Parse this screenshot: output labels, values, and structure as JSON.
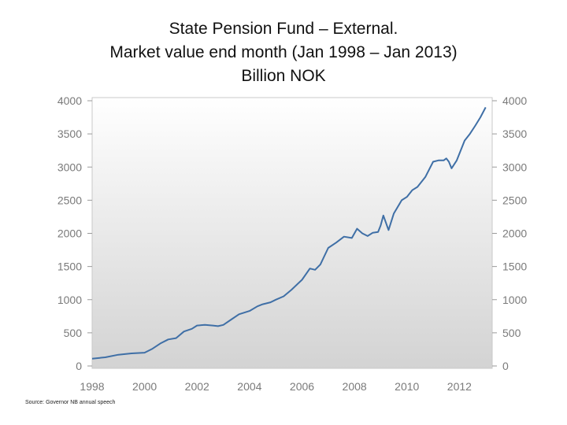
{
  "title": {
    "line1": "State Pension Fund – External.",
    "line2": "Market value end month (Jan 1998 – Jan 2013)",
    "line3": "Billion NOK"
  },
  "source": "Source: Governor NB annual speech",
  "chart_data": {
    "type": "line",
    "title": "State Pension Fund – External. Market value end month (Jan 1998 – Jan 2013) Billion NOK",
    "xlabel": "",
    "ylabel": "",
    "xlim": [
      1998,
      2013.25
    ],
    "ylim": [
      0,
      4000
    ],
    "x_ticks": [
      "1998",
      "2000",
      "2002",
      "2004",
      "2006",
      "2008",
      "2010",
      "2012"
    ],
    "y_ticks": [
      "0",
      "500",
      "1000",
      "1500",
      "2000",
      "2500",
      "3000",
      "3500",
      "4000"
    ],
    "y_axis_both_sides": true,
    "grid": false,
    "colors": {
      "line": "#3f6fa6",
      "plot_bg_top": "#ffffff",
      "plot_bg_bottom": "#d3d3d3"
    },
    "series": [
      {
        "x": [
          1998.0,
          1998.5,
          1999.0,
          1999.5,
          2000.0,
          2000.3,
          2000.6,
          2000.9,
          2001.2,
          2001.5,
          2001.8,
          2002.0,
          2002.3,
          2002.6,
          2002.8,
          2003.0,
          2003.3,
          2003.6,
          2004.0,
          2004.3,
          2004.5,
          2004.8,
          2005.0,
          2005.3,
          2005.6,
          2006.0,
          2006.3,
          2006.5,
          2006.7,
          2007.0,
          2007.3,
          2007.6,
          2007.9,
          2008.1,
          2008.3,
          2008.5,
          2008.7,
          2008.9,
          2009.0,
          2009.1,
          2009.3,
          2009.5,
          2009.8,
          2010.0,
          2010.2,
          2010.4,
          2010.7,
          2011.0,
          2011.2,
          2011.4,
          2011.5,
          2011.6,
          2011.7,
          2011.9,
          2012.2,
          2012.4,
          2012.6,
          2012.8,
          2013.0
        ],
        "values": [
          110,
          130,
          170,
          190,
          200,
          260,
          340,
          400,
          420,
          520,
          560,
          610,
          620,
          610,
          600,
          620,
          700,
          780,
          830,
          900,
          930,
          960,
          1000,
          1050,
          1150,
          1300,
          1470,
          1450,
          1530,
          1780,
          1860,
          1950,
          1930,
          2070,
          2000,
          1960,
          2010,
          2020,
          2120,
          2270,
          2050,
          2300,
          2500,
          2550,
          2650,
          2700,
          2850,
          3080,
          3100,
          3100,
          3130,
          3080,
          2980,
          3100,
          3400,
          3500,
          3620,
          3750,
          3900
        ]
      }
    ]
  }
}
